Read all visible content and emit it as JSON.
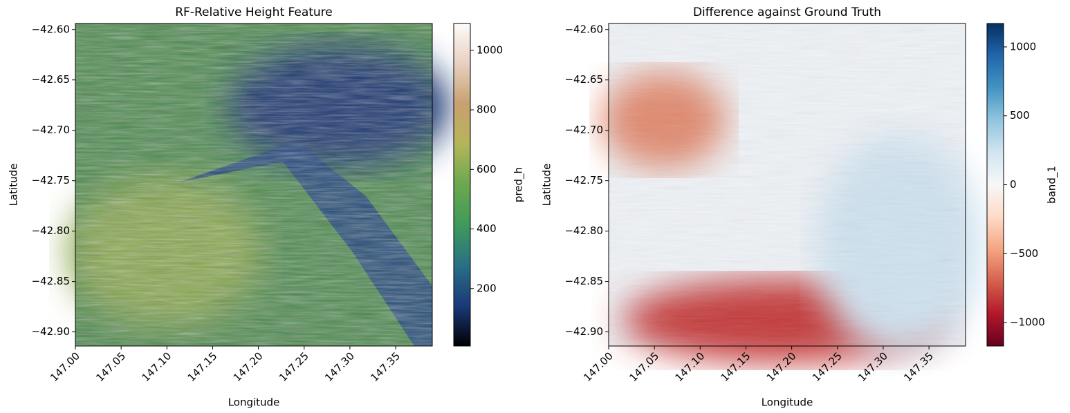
{
  "chart_data": [
    {
      "type": "heatmap",
      "title": "RF-Relative Height Feature",
      "xlabel": "Longitude",
      "ylabel": "Latitude",
      "xlim": [
        147.0,
        147.39
      ],
      "ylim": [
        -42.914,
        -42.594
      ],
      "xticks": [
        {
          "value": 147.0,
          "label": "147.00"
        },
        {
          "value": 147.05,
          "label": "147.05"
        },
        {
          "value": 147.1,
          "label": "147.10"
        },
        {
          "value": 147.15,
          "label": "147.15"
        },
        {
          "value": 147.2,
          "label": "147.20"
        },
        {
          "value": 147.25,
          "label": "147.25"
        },
        {
          "value": 147.3,
          "label": "147.30"
        },
        {
          "value": 147.35,
          "label": "147.35"
        }
      ],
      "yticks": [
        {
          "value": -42.6,
          "label": "−42.60"
        },
        {
          "value": -42.65,
          "label": "−42.65"
        },
        {
          "value": -42.7,
          "label": "−42.70"
        },
        {
          "value": -42.75,
          "label": "−42.75"
        },
        {
          "value": -42.8,
          "label": "−42.80"
        },
        {
          "value": -42.85,
          "label": "−42.85"
        },
        {
          "value": -42.9,
          "label": "−42.90"
        }
      ],
      "colorbar": {
        "label": "pred_h",
        "clim": [
          7,
          1090
        ],
        "ticks": [
          200,
          400,
          600,
          800,
          1000
        ],
        "colormap": [
          "#000000",
          "#1a3a7a",
          "#2a6f86",
          "#3f9a5a",
          "#6aa84f",
          "#b5b55a",
          "#c8a070",
          "#e8d0c0",
          "#fdfbfb"
        ]
      }
    },
    {
      "type": "heatmap",
      "title": "Difference against Ground Truth",
      "xlabel": "Longitude",
      "ylabel": "Latitude",
      "xlim": [
        147.0,
        147.39
      ],
      "ylim": [
        -42.914,
        -42.594
      ],
      "xticks": [
        {
          "value": 147.0,
          "label": "147.00"
        },
        {
          "value": 147.05,
          "label": "147.05"
        },
        {
          "value": 147.1,
          "label": "147.10"
        },
        {
          "value": 147.15,
          "label": "147.15"
        },
        {
          "value": 147.2,
          "label": "147.20"
        },
        {
          "value": 147.25,
          "label": "147.25"
        },
        {
          "value": 147.3,
          "label": "147.30"
        },
        {
          "value": 147.35,
          "label": "147.35"
        }
      ],
      "yticks": [
        {
          "value": -42.6,
          "label": "−42.60"
        },
        {
          "value": -42.65,
          "label": "−42.65"
        },
        {
          "value": -42.7,
          "label": "−42.70"
        },
        {
          "value": -42.75,
          "label": "−42.75"
        },
        {
          "value": -42.8,
          "label": "−42.80"
        },
        {
          "value": -42.85,
          "label": "−42.85"
        },
        {
          "value": -42.9,
          "label": "−42.90"
        }
      ],
      "colorbar": {
        "label": "band_1",
        "clim": [
          -1170,
          1170
        ],
        "ticks": [
          {
            "value": -1000,
            "label": "−1000"
          },
          {
            "value": -500,
            "label": "−500"
          },
          0,
          500,
          1000
        ],
        "colormap": [
          "#67001f",
          "#b2182b",
          "#d6604d",
          "#f4a582",
          "#fddbc7",
          "#f7f7f7",
          "#d1e5f0",
          "#92c5de",
          "#4393c3",
          "#2166ac",
          "#053061"
        ]
      }
    }
  ]
}
